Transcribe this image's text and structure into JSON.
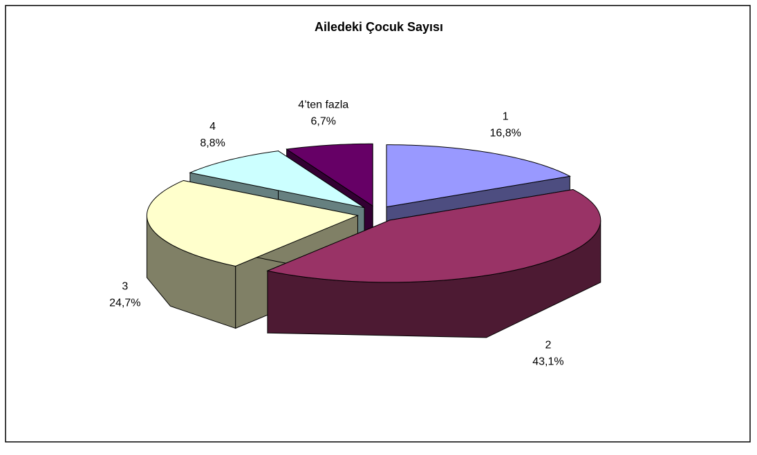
{
  "chart_data": {
    "type": "pie",
    "title": "Ailedeki Çocuk Sayısı",
    "categories": [
      "1",
      "2",
      "3",
      "4",
      "4’ten fazla"
    ],
    "values": [
      16.8,
      43.1,
      24.7,
      8.8,
      6.7
    ],
    "value_labels": [
      "16,8%",
      "43,1%",
      "24,7%",
      "8,8%",
      "6,7%"
    ],
    "colors": [
      "#9999ff",
      "#993366",
      "#ffffcc",
      "#ccffff",
      "#660066"
    ]
  }
}
